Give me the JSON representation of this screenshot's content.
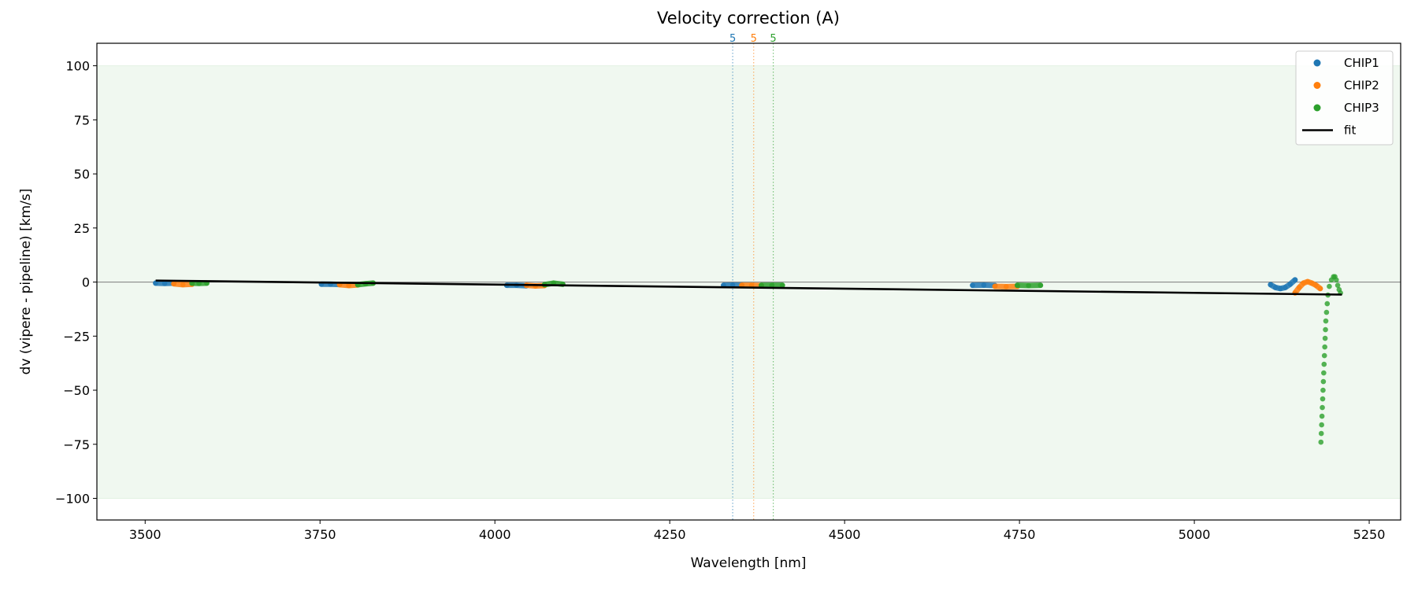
{
  "chart_data": {
    "type": "scatter",
    "title": "Velocity correction (A)",
    "xlabel": "Wavelength [nm]",
    "ylabel": "dv (vipere - pipeline) [km/s]",
    "xlim": [
      3431,
      5295
    ],
    "ylim": [
      -110,
      110.4
    ],
    "xticks": [
      3500,
      3750,
      4000,
      4250,
      4500,
      4750,
      5000,
      5250
    ],
    "yticks": [
      100,
      75,
      50,
      25,
      0,
      -25,
      -50,
      -75,
      -100
    ],
    "grid": false,
    "legend": {
      "placement": "top-right",
      "entries": [
        "CHIP1",
        "CHIP2",
        "CHIP3",
        "fit"
      ]
    },
    "band": {
      "from": -100,
      "to": 100,
      "color": "#2ca02c"
    },
    "zero_line": 0,
    "vlines": [
      {
        "x": 4340,
        "label": "5",
        "color": "#1f77b4"
      },
      {
        "x": 4370,
        "label": "5",
        "color": "#ff7f0e"
      },
      {
        "x": 4398,
        "label": "5",
        "color": "#2ca02c"
      }
    ],
    "fit": {
      "name": "fit",
      "color": "#000000",
      "points": [
        [
          3515,
          0.7
        ],
        [
          5211,
          -5.8
        ]
      ]
    },
    "series": [
      {
        "name": "CHIP1",
        "color": "#1f77b4",
        "clusters": [
          [
            [
              3515,
              -0.5
            ],
            [
              3528,
              -0.6
            ],
            [
              3541,
              -0.5
            ]
          ],
          [
            [
              3752,
              -1.0
            ],
            [
              3765,
              -1.0
            ],
            [
              3778,
              -1.1
            ]
          ],
          [
            [
              4017,
              -1.5
            ],
            [
              4031,
              -1.5
            ],
            [
              4045,
              -1.7
            ]
          ],
          [
            [
              4327,
              -1.5
            ],
            [
              4340,
              -1.4
            ],
            [
              4353,
              -1.5
            ]
          ],
          [
            [
              4683,
              -1.5
            ],
            [
              4699,
              -1.4
            ],
            [
              4715,
              -1.6
            ]
          ],
          [
            [
              5109,
              -1.2
            ],
            [
              5116,
              -2.5
            ],
            [
              5123,
              -3.0
            ],
            [
              5130,
              -2.5
            ],
            [
              5137,
              -1.0
            ],
            [
              5144,
              1.0
            ]
          ]
        ]
      },
      {
        "name": "CHIP2",
        "color": "#ff7f0e",
        "clusters": [
          [
            [
              3541,
              -0.8
            ],
            [
              3554,
              -1.2
            ],
            [
              3567,
              -1.0
            ]
          ],
          [
            [
              3778,
              -1.2
            ],
            [
              3791,
              -1.6
            ],
            [
              3804,
              -1.3
            ]
          ],
          [
            [
              4045,
              -1.5
            ],
            [
              4058,
              -1.8
            ],
            [
              4071,
              -1.6
            ]
          ],
          [
            [
              4353,
              -1.5
            ],
            [
              4367,
              -1.5
            ],
            [
              4381,
              -1.6
            ]
          ],
          [
            [
              4715,
              -2.0
            ],
            [
              4731,
              -2.1
            ],
            [
              4747,
              -2.0
            ]
          ],
          [
            [
              5144,
              -5.0
            ],
            [
              5150,
              -2.5
            ],
            [
              5156,
              -0.5
            ],
            [
              5162,
              0.2
            ],
            [
              5168,
              -0.5
            ],
            [
              5174,
              -1.5
            ],
            [
              5180,
              -3.0
            ]
          ]
        ]
      },
      {
        "name": "CHIP3",
        "color": "#2ca02c",
        "clusters": [
          [
            [
              3567,
              -0.5
            ],
            [
              3577,
              -0.6
            ],
            [
              3588,
              -0.5
            ]
          ],
          [
            [
              3804,
              -1.2
            ],
            [
              3815,
              -0.8
            ],
            [
              3826,
              -0.5
            ]
          ],
          [
            [
              4071,
              -1.2
            ],
            [
              4084,
              -0.5
            ],
            [
              4097,
              -1.0
            ]
          ],
          [
            [
              4381,
              -1.5
            ],
            [
              4396,
              -1.5
            ],
            [
              4411,
              -1.5
            ]
          ],
          [
            [
              4747,
              -1.5
            ],
            [
              4763,
              -1.6
            ],
            [
              4780,
              -1.5
            ]
          ],
          [
            [
              5181,
              -74
            ],
            [
              5181.5,
              -70
            ],
            [
              5182,
              -66
            ],
            [
              5182.5,
              -62
            ],
            [
              5183,
              -58
            ],
            [
              5183.5,
              -54
            ],
            [
              5184,
              -50
            ],
            [
              5184.5,
              -46
            ],
            [
              5185,
              -42
            ],
            [
              5185.5,
              -38
            ],
            [
              5186,
              -34
            ],
            [
              5186.5,
              -30
            ],
            [
              5187,
              -26
            ],
            [
              5187.5,
              -22
            ],
            [
              5188,
              -18
            ],
            [
              5189,
              -14
            ],
            [
              5190,
              -10
            ],
            [
              5191,
              -6
            ],
            [
              5193,
              -2
            ],
            [
              5196,
              1
            ],
            [
              5199,
              2.5
            ],
            [
              5201,
              2.5
            ],
            [
              5203,
              1
            ],
            [
              5205,
              -1.5
            ],
            [
              5207,
              -3.5
            ],
            [
              5209,
              -5
            ]
          ]
        ]
      }
    ]
  }
}
